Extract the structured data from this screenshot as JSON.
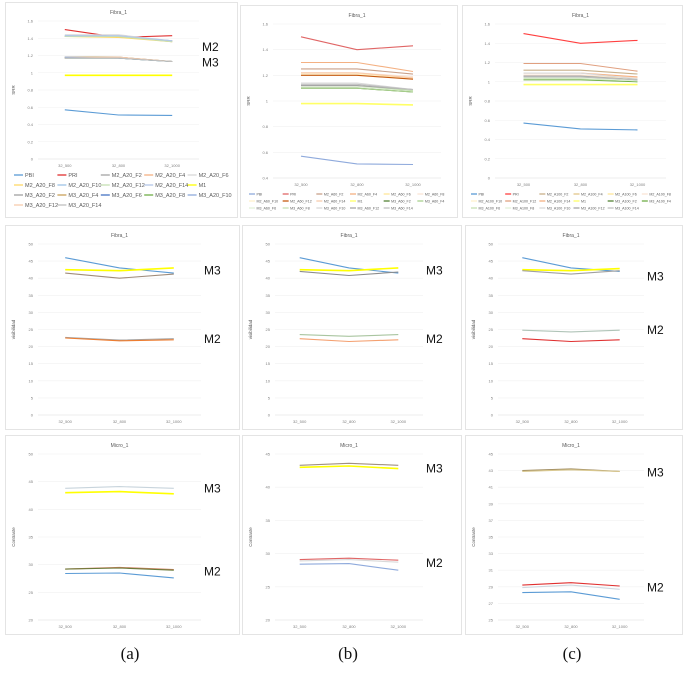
{
  "captions": [
    "(a)",
    "(b)",
    "(c)"
  ],
  "chart_data": [
    {
      "type": "line",
      "title": "Fibra_1",
      "ylabel": "SRR",
      "ylim": [
        0,
        1.6
      ],
      "ystep": 0.2,
      "categories": [
        "32_500",
        "32_800",
        "32_1000"
      ],
      "grid": true,
      "legend": "bottom",
      "series": [
        {
          "name": "PBI",
          "color": "#5b9bd5",
          "values": [
            0.57,
            0.51,
            0.505
          ]
        },
        {
          "name": "PRI",
          "color": "#e03030",
          "values": [
            1.5,
            1.41,
            1.43
          ]
        },
        {
          "name": "M2_A20_F2",
          "color": "#a5a5a5",
          "values": [
            1.42,
            1.42,
            1.37
          ]
        },
        {
          "name": "M2_A20_F4",
          "color": "#f4b183",
          "values": [
            1.42,
            1.42,
            1.36
          ]
        },
        {
          "name": "M2_A20_F6",
          "color": "#d9d9d9",
          "values": [
            1.44,
            1.44,
            1.37
          ]
        },
        {
          "name": "M2_A20_F8",
          "color": "#ffd966",
          "values": [
            1.42,
            1.41,
            1.36
          ]
        },
        {
          "name": "M2_A20_F10",
          "color": "#9dc3e6",
          "values": [
            1.43,
            1.42,
            1.37
          ]
        },
        {
          "name": "M2_A20_F12",
          "color": "#c5e0b4",
          "values": [
            1.42,
            1.42,
            1.36
          ]
        },
        {
          "name": "M2_A20_F14",
          "color": "#b4c7e7",
          "values": [
            1.43,
            1.43,
            1.37
          ]
        },
        {
          "name": "M1",
          "color": "#ffff00",
          "values": [
            0.97,
            0.97,
            0.97
          ]
        },
        {
          "name": "M3_A20_F2",
          "color": "#a0a0a0",
          "values": [
            1.18,
            1.18,
            1.13
          ]
        },
        {
          "name": "M3_A20_F4",
          "color": "#c9a15a",
          "values": [
            1.18,
            1.18,
            1.13
          ]
        },
        {
          "name": "M3_A20_F6",
          "color": "#4472c4",
          "values": [
            1.17,
            1.17,
            1.13
          ]
        },
        {
          "name": "M3_A20_F8",
          "color": "#70ad47",
          "values": [
            1.17,
            1.17,
            1.13
          ]
        },
        {
          "name": "M3_A20_F10",
          "color": "#8faadc",
          "values": [
            1.18,
            1.17,
            1.13
          ]
        },
        {
          "name": "M3_A20_F12",
          "color": "#f8cbad",
          "values": [
            1.17,
            1.18,
            1.13
          ]
        },
        {
          "name": "M3_A20_F14",
          "color": "#bfbfbf",
          "values": [
            1.17,
            1.17,
            1.13
          ]
        }
      ],
      "annotations": [
        {
          "text": "M2",
          "y": 1.3
        },
        {
          "text": "M3",
          "y": 1.12
        }
      ]
    },
    {
      "type": "line",
      "title": "Fibra_1",
      "ylabel": "SRR",
      "ylim": [
        0.4,
        1.6
      ],
      "ystep": 0.2,
      "categories": [
        "32_500",
        "32_800",
        "32_1000"
      ],
      "grid": true,
      "legend": "bottom",
      "series": [
        {
          "name": "PBI",
          "color": "#8faadc",
          "values": [
            0.57,
            0.51,
            0.505
          ]
        },
        {
          "name": "PRI",
          "color": "#e06666",
          "values": [
            1.5,
            1.4,
            1.43
          ]
        },
        {
          "name": "M2_A60_F2",
          "color": "#c9a08a",
          "values": [
            1.25,
            1.25,
            1.21
          ]
        },
        {
          "name": "M2_A60_F4",
          "color": "#f4b183",
          "values": [
            1.3,
            1.3,
            1.23
          ]
        },
        {
          "name": "M2_A60_F6",
          "color": "#ffe699",
          "values": [
            1.21,
            1.21,
            1.18
          ]
        },
        {
          "name": "M2_A60_F8",
          "color": "#fbe5d6",
          "values": [
            1.22,
            1.22,
            1.19
          ]
        },
        {
          "name": "M2_A60_F10",
          "color": "#fff2cc",
          "values": [
            1.21,
            1.21,
            1.17
          ]
        },
        {
          "name": "M2_A60_F12",
          "color": "#c55a11",
          "values": [
            1.2,
            1.2,
            1.17
          ]
        },
        {
          "name": "M2_A60_F14",
          "color": "#f8cbad",
          "values": [
            1.22,
            1.22,
            1.18
          ]
        },
        {
          "name": "M1",
          "color": "#ffff66",
          "values": [
            0.98,
            0.98,
            0.97
          ]
        },
        {
          "name": "M3_A60_F2",
          "color": "#548235",
          "values": [
            1.1,
            1.1,
            1.07
          ]
        },
        {
          "name": "M3_A60_F4",
          "color": "#a9d18e",
          "values": [
            1.1,
            1.1,
            1.07
          ]
        },
        {
          "name": "M3_A60_F6",
          "color": "#e2f0d9",
          "values": [
            1.11,
            1.11,
            1.08
          ]
        },
        {
          "name": "M3_A60_F8",
          "color": "#c5e0b4",
          "values": [
            1.12,
            1.12,
            1.08
          ]
        },
        {
          "name": "M3_A60_F10",
          "color": "#d9d9d9",
          "values": [
            1.14,
            1.14,
            1.09
          ]
        },
        {
          "name": "M3_A60_F12",
          "color": "#a6a6a6",
          "values": [
            1.12,
            1.12,
            1.09
          ]
        },
        {
          "name": "M3_A60_F14",
          "color": "#bfbfbf",
          "values": [
            1.13,
            1.13,
            1.09
          ]
        }
      ]
    },
    {
      "type": "line",
      "title": "Fibra_1",
      "ylabel": "SRR",
      "ylim": [
        0,
        1.6
      ],
      "ystep": 0.2,
      "categories": [
        "32_500",
        "32_800",
        "32_1000"
      ],
      "grid": true,
      "legend": "bottom",
      "series": [
        {
          "name": "PBI",
          "color": "#5b9bd5",
          "values": [
            0.57,
            0.51,
            0.5
          ]
        },
        {
          "name": "PRI",
          "color": "#ff4040",
          "values": [
            1.5,
            1.4,
            1.43
          ]
        },
        {
          "name": "M2_A100_F2",
          "color": "#c9b08a",
          "values": [
            1.12,
            1.12,
            1.08
          ]
        },
        {
          "name": "M2_A100_F4",
          "color": "#e2c68a",
          "values": [
            1.06,
            1.06,
            1.04
          ]
        },
        {
          "name": "M2_A100_F6",
          "color": "#ffe699",
          "values": [
            1.05,
            1.05,
            1.03
          ]
        },
        {
          "name": "M2_A100_F8",
          "color": "#fbe5d6",
          "values": [
            1.07,
            1.07,
            1.04
          ]
        },
        {
          "name": "M2_A100_F10",
          "color": "#fff2cc",
          "values": [
            1.06,
            1.06,
            1.03
          ]
        },
        {
          "name": "M2_A100_F12",
          "color": "#e0a080",
          "values": [
            1.19,
            1.19,
            1.11
          ]
        },
        {
          "name": "M2_A100_F14",
          "color": "#f4b183",
          "values": [
            1.09,
            1.09,
            1.05
          ]
        },
        {
          "name": "M1",
          "color": "#ffff66",
          "values": [
            0.97,
            0.97,
            0.97
          ]
        },
        {
          "name": "M3_A100_F2",
          "color": "#548235",
          "values": [
            1.05,
            1.05,
            1.02
          ]
        },
        {
          "name": "M3_A100_F4",
          "color": "#70ad47",
          "values": [
            1.02,
            1.02,
            1.0
          ]
        },
        {
          "name": "M3_A100_F6",
          "color": "#c5e0b4",
          "values": [
            1.03,
            1.03,
            1.01
          ]
        },
        {
          "name": "M3_A100_F8",
          "color": "#e2f0d9",
          "values": [
            1.04,
            1.04,
            1.01
          ]
        },
        {
          "name": "M3_A100_F10",
          "color": "#d9d9d9",
          "values": [
            1.09,
            1.09,
            1.03
          ]
        },
        {
          "name": "M3_A100_F12",
          "color": "#a6a6a6",
          "values": [
            1.06,
            1.06,
            1.02
          ]
        },
        {
          "name": "M3_A100_F14",
          "color": "#bfbfbf",
          "values": [
            1.05,
            1.05,
            1.02
          ]
        }
      ]
    },
    {
      "type": "line",
      "title": "Fibra_1",
      "ylabel": "visibilidad",
      "ylim": [
        0,
        50
      ],
      "ystep": 5,
      "categories": [
        "32_500",
        "32_800",
        "32_1000"
      ],
      "grid": true,
      "series": [
        {
          "color": "#5b9bd5",
          "values": [
            46,
            43,
            41.5
          ]
        },
        {
          "color": "#ffff00",
          "values": [
            42.5,
            42.2,
            43
          ]
        },
        {
          "color": "#a08c7a",
          "values": [
            41.5,
            40,
            41.2
          ]
        },
        {
          "color": "#a6a6a6",
          "values": [
            22.7,
            21.9,
            22.3
          ]
        },
        {
          "color": "#ed7d31",
          "values": [
            22.5,
            21.7,
            22
          ]
        }
      ],
      "annotations": [
        {
          "text": "M3",
          "y": 42.3
        },
        {
          "text": "M2",
          "y": 22.2
        }
      ]
    },
    {
      "type": "line",
      "title": "Fibra_1",
      "ylabel": "visibilidad",
      "ylim": [
        0,
        50
      ],
      "ystep": 5,
      "categories": [
        "32_500",
        "32_800",
        "32_1000"
      ],
      "grid": true,
      "series": [
        {
          "color": "#5b9bd5",
          "values": [
            46,
            43,
            41.5
          ]
        },
        {
          "color": "#ffff00",
          "values": [
            42.5,
            42.2,
            43
          ]
        },
        {
          "color": "#8c8c8c",
          "values": [
            42,
            40.8,
            41.8
          ]
        },
        {
          "color": "#a9c5a0",
          "values": [
            23.5,
            23,
            23.5
          ]
        },
        {
          "color": "#f4a070",
          "values": [
            22.3,
            21.5,
            22
          ]
        }
      ],
      "annotations": [
        {
          "text": "M3",
          "y": 42.2
        },
        {
          "text": "M2",
          "y": 22.2
        }
      ]
    },
    {
      "type": "line",
      "title": "Fibra_1",
      "ylabel": "visibilidad",
      "ylim": [
        0,
        50
      ],
      "ystep": 5,
      "categories": [
        "32_500",
        "32_800",
        "32_1000"
      ],
      "grid": true,
      "series": [
        {
          "color": "#5b9bd5",
          "values": [
            46,
            43,
            42
          ]
        },
        {
          "color": "#ffff00",
          "values": [
            42.5,
            42.2,
            42.8
          ]
        },
        {
          "color": "#a0a0a0",
          "values": [
            42.2,
            41.2,
            42.2
          ]
        },
        {
          "color": "#b0c4b8",
          "values": [
            24.8,
            24.3,
            24.8
          ]
        },
        {
          "color": "#e03030",
          "values": [
            22.3,
            21.5,
            22
          ]
        }
      ],
      "annotations": [
        {
          "text": "M3",
          "y": 40.5
        },
        {
          "text": "M2",
          "y": 24.8
        }
      ]
    },
    {
      "type": "line",
      "title": "Micro_1",
      "ylabel": "Contraste",
      "ylim": [
        20,
        50
      ],
      "ystep": 5,
      "categories": [
        "32_500",
        "32_800",
        "32_1000"
      ],
      "grid": true,
      "series": [
        {
          "color": "#c8d4dc",
          "values": [
            43.8,
            44.1,
            43.8
          ]
        },
        {
          "color": "#ffff00",
          "values": [
            43,
            43.2,
            42.8
          ]
        },
        {
          "color": "#d08060",
          "values": [
            29.2,
            29.5,
            29.1
          ]
        },
        {
          "color": "#6b7a3a",
          "values": [
            29.2,
            29.4,
            29.0
          ]
        },
        {
          "color": "#5b9bd5",
          "values": [
            28.4,
            28.5,
            27.6
          ]
        }
      ],
      "annotations": [
        {
          "text": "M3",
          "y": 43.8
        },
        {
          "text": "M2",
          "y": 28.8
        }
      ]
    },
    {
      "type": "line",
      "title": "Micro_1",
      "ylabel": "Contraste",
      "ylim": [
        20,
        45
      ],
      "ystep": 5,
      "categories": [
        "32_500",
        "32_800",
        "32_1000"
      ],
      "grid": true,
      "series": [
        {
          "color": "#a09080",
          "values": [
            43.3,
            43.6,
            43.3
          ]
        },
        {
          "color": "#ffff00",
          "values": [
            43,
            43.2,
            42.8
          ]
        },
        {
          "color": "#e06666",
          "values": [
            29.1,
            29.3,
            29.0
          ]
        },
        {
          "color": "#d9d9d9",
          "values": [
            28.9,
            29.1,
            28.7
          ]
        },
        {
          "color": "#8faadc",
          "values": [
            28.4,
            28.5,
            27.5
          ]
        }
      ],
      "annotations": [
        {
          "text": "M3",
          "y": 42.8
        },
        {
          "text": "M2",
          "y": 28.6
        }
      ]
    },
    {
      "type": "line",
      "title": "Micro_1",
      "ylabel": "Contraste",
      "ylim": [
        25,
        45
      ],
      "ystep": 2,
      "categories": [
        "32_500",
        "32_800",
        "32_1000"
      ],
      "grid": true,
      "series": [
        {
          "color": "#a08c60",
          "values": [
            43,
            43.2,
            42.9
          ]
        },
        {
          "color": "#d9c890",
          "values": [
            42.9,
            43.1,
            42.9
          ]
        },
        {
          "color": "#e03030",
          "values": [
            29.2,
            29.5,
            29.1
          ]
        },
        {
          "color": "#d0d8e0",
          "values": [
            28.9,
            29.2,
            28.7
          ]
        },
        {
          "color": "#5b9bd5",
          "values": [
            28.3,
            28.4,
            27.5
          ]
        }
      ],
      "annotations": [
        {
          "text": "M3",
          "y": 42.8
        },
        {
          "text": "M2",
          "y": 28.9
        }
      ]
    }
  ]
}
